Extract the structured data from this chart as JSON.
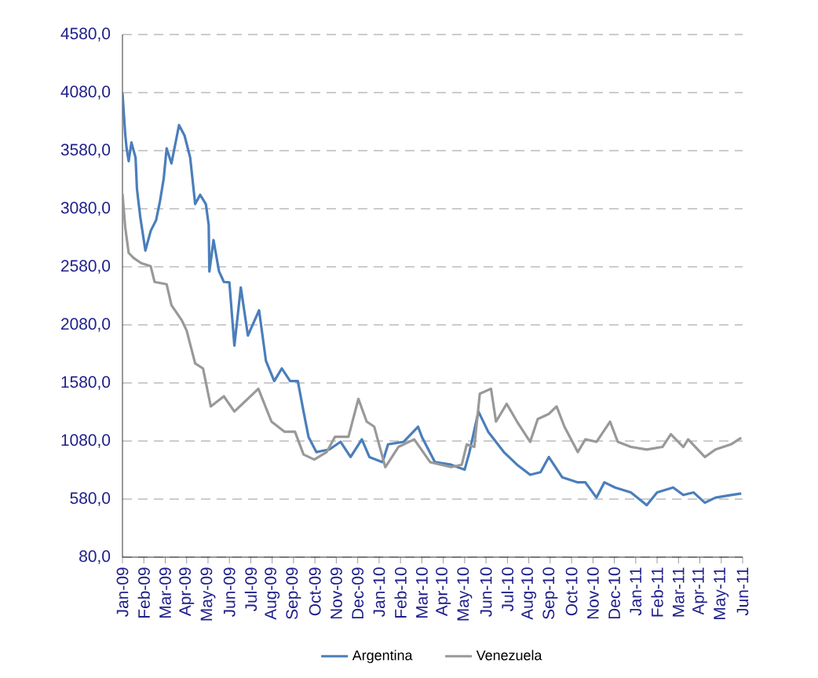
{
  "chart_data": {
    "type": "line",
    "xlim": [
      "2009-01",
      "2011-06"
    ],
    "xticks": [
      {
        "value": "2009-01",
        "label": "Jan-09"
      },
      {
        "value": "2009-02",
        "label": "Feb-09"
      },
      {
        "value": "2009-03",
        "label": "Mar-09"
      },
      {
        "value": "2009-04",
        "label": "Apr-09"
      },
      {
        "value": "2009-05",
        "label": "May-09"
      },
      {
        "value": "2009-06",
        "label": "Jun-09"
      },
      {
        "value": "2009-07",
        "label": "Jul-09"
      },
      {
        "value": "2009-08",
        "label": "Aug-09"
      },
      {
        "value": "2009-09",
        "label": "Sep-09"
      },
      {
        "value": "2009-10",
        "label": "Oct-09"
      },
      {
        "value": "2009-11",
        "label": "Nov-09"
      },
      {
        "value": "2009-12",
        "label": "Dec-09"
      },
      {
        "value": "2010-01",
        "label": "Jan-10"
      },
      {
        "value": "2010-02",
        "label": "Feb-10"
      },
      {
        "value": "2010-03",
        "label": "Mar-10"
      },
      {
        "value": "2010-04",
        "label": "Apr-10"
      },
      {
        "value": "2010-05",
        "label": "May-10"
      },
      {
        "value": "2010-06",
        "label": "Jun-10"
      },
      {
        "value": "2010-07",
        "label": "Jul-10"
      },
      {
        "value": "2010-08",
        "label": "Aug-10"
      },
      {
        "value": "2010-09",
        "label": "Sep-10"
      },
      {
        "value": "2010-10",
        "label": "Oct-10"
      },
      {
        "value": "2010-11",
        "label": "Nov-10"
      },
      {
        "value": "2010-12",
        "label": "Dec-10"
      },
      {
        "value": "2011-01",
        "label": "Jan-11"
      },
      {
        "value": "2011-02",
        "label": "Feb-11"
      },
      {
        "value": "2011-03",
        "label": "Mar-11"
      },
      {
        "value": "2011-04",
        "label": "Apr-11"
      },
      {
        "value": "2011-05",
        "label": "May-11"
      },
      {
        "value": "2011-06",
        "label": "Jun-11"
      }
    ],
    "ylim": [
      80,
      4580
    ],
    "yticks": [
      {
        "value": 80,
        "label": "80,0"
      },
      {
        "value": 580,
        "label": "580,0"
      },
      {
        "value": 1080,
        "label": "1080,0"
      },
      {
        "value": 1580,
        "label": "1580,0"
      },
      {
        "value": 2080,
        "label": "2080,0"
      },
      {
        "value": 2580,
        "label": "2580,0"
      },
      {
        "value": 3080,
        "label": "3080,0"
      },
      {
        "value": 3580,
        "label": "3580,0"
      },
      {
        "value": 4080,
        "label": "4080,0"
      },
      {
        "value": 4580,
        "label": "4580,0"
      }
    ],
    "grid": "y",
    "legend": "bottom",
    "marker": "none",
    "line_style": "solid",
    "series": [
      {
        "name": "Argentina",
        "color": "#4a7ebb",
        "x": [
          "2009-01-01",
          "2009-01-05",
          "2009-01-07",
          "2009-01-10",
          "2009-01-14",
          "2009-01-20",
          "2009-01-22",
          "2009-01-27",
          "2009-02-03",
          "2009-02-10",
          "2009-02-17",
          "2009-02-22",
          "2009-02-27",
          "2009-03-03",
          "2009-03-10",
          "2009-03-21",
          "2009-03-29",
          "2009-04-06",
          "2009-04-13",
          "2009-04-20",
          "2009-04-28",
          "2009-05-02",
          "2009-05-03",
          "2009-05-09",
          "2009-05-17",
          "2009-05-24",
          "2009-06-01",
          "2009-06-08",
          "2009-06-17",
          "2009-06-27",
          "2009-07-13",
          "2009-07-23",
          "2009-08-04",
          "2009-08-15",
          "2009-08-27",
          "2009-09-07",
          "2009-09-15",
          "2009-09-22",
          "2009-10-03",
          "2009-10-22",
          "2009-11-07",
          "2009-11-21",
          "2009-12-07",
          "2009-12-18",
          "2010-01-06",
          "2010-01-14",
          "2010-02-05",
          "2010-02-24",
          "2010-03-01",
          "2010-03-20",
          "2010-04-12",
          "2010-05-01",
          "2010-05-08",
          "2010-05-21",
          "2010-06-04",
          "2010-06-26",
          "2010-07-15",
          "2010-08-03",
          "2010-08-18",
          "2010-08-30",
          "2010-09-18",
          "2010-10-10",
          "2010-10-21",
          "2010-11-06",
          "2010-11-17",
          "2010-12-02",
          "2010-12-25",
          "2011-01-17",
          "2011-02-01",
          "2011-02-22",
          "2011-03-08",
          "2011-03-23",
          "2011-04-08",
          "2011-04-23",
          "2011-05-15",
          "2011-05-30"
        ],
        "values": [
          4075,
          3720,
          3600,
          3490,
          3650,
          3520,
          3250,
          3000,
          2720,
          2890,
          2980,
          3140,
          3340,
          3600,
          3470,
          3800,
          3710,
          3520,
          3120,
          3200,
          3120,
          2940,
          2540,
          2810,
          2540,
          2450,
          2446,
          1901,
          2402,
          1988,
          2206,
          1770,
          1596,
          1705,
          1596,
          1596,
          1334,
          1116,
          985,
          1007,
          1073,
          942,
          1094,
          942,
          898,
          1051,
          1073,
          1203,
          1116,
          898,
          876,
          833,
          985,
          1334,
          1160,
          985,
          876,
          789,
          811,
          942,
          767,
          724,
          724,
          593,
          724,
          680,
          637,
          528,
          637,
          680,
          615,
          637,
          549,
          593,
          615,
          628
        ]
      },
      {
        "name": "Venezuela",
        "color": "#999999",
        "x": [
          "2009-01-01",
          "2009-01-05",
          "2009-01-10",
          "2009-01-17",
          "2009-01-28",
          "2009-02-10",
          "2009-02-15",
          "2009-03-03",
          "2009-03-10",
          "2009-03-25",
          "2009-04-01",
          "2009-04-13",
          "2009-04-24",
          "2009-05-05",
          "2009-05-24",
          "2009-06-08",
          "2009-06-23",
          "2009-07-12",
          "2009-07-31",
          "2009-08-19",
          "2009-09-03",
          "2009-09-15",
          "2009-09-30",
          "2009-10-18",
          "2009-10-30",
          "2009-11-18",
          "2009-12-02",
          "2009-12-14",
          "2009-12-25",
          "2010-01-10",
          "2010-01-29",
          "2010-02-19",
          "2010-03-13",
          "2010-04-12",
          "2010-04-27",
          "2010-05-04",
          "2010-05-15",
          "2010-05-23",
          "2010-06-08",
          "2010-06-15",
          "2010-06-30",
          "2010-07-15",
          "2010-08-03",
          "2010-08-14",
          "2010-08-30",
          "2010-09-10",
          "2010-09-21",
          "2010-10-10",
          "2010-10-21",
          "2010-11-06",
          "2010-11-25",
          "2010-12-06",
          "2010-12-25",
          "2011-01-17",
          "2011-02-08",
          "2011-02-19",
          "2011-03-08",
          "2011-03-15",
          "2011-04-08",
          "2011-04-23",
          "2011-05-15",
          "2011-05-30"
        ],
        "values": [
          3209,
          2920,
          2700,
          2657,
          2612,
          2585,
          2450,
          2430,
          2250,
          2119,
          2032,
          1748,
          1705,
          1378,
          1465,
          1334,
          1421,
          1530,
          1247,
          1160,
          1160,
          964,
          920,
          985,
          1116,
          1116,
          1443,
          1247,
          1203,
          855,
          1029,
          1094,
          898,
          855,
          876,
          1051,
          1029,
          1487,
          1530,
          1247,
          1400,
          1247,
          1073,
          1269,
          1313,
          1378,
          1203,
          985,
          1094,
          1073,
          1247,
          1073,
          1029,
          1007,
          1029,
          1138,
          1029,
          1094,
          942,
          1007,
          1051,
          1108
        ]
      }
    ]
  }
}
